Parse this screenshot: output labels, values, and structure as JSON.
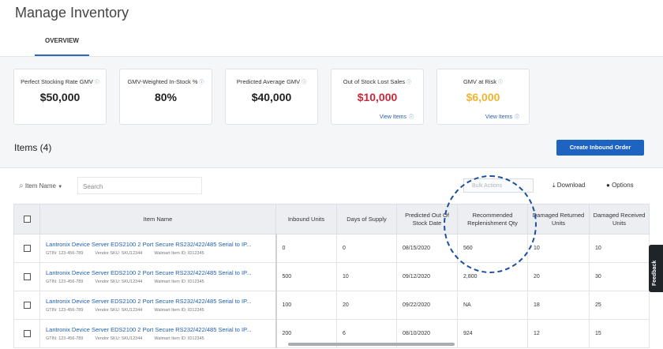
{
  "header": {
    "title": "Manage Inventory",
    "tab": "OVERVIEW"
  },
  "metrics": [
    {
      "label": "Perfect Stocking Rate GMV",
      "value": "$50,000",
      "color": "#222222"
    },
    {
      "label": "GMV-Weighted In-Stock %",
      "value": "80%",
      "color": "#222222"
    },
    {
      "label": "Predicted Average GMV",
      "value": "$40,000",
      "color": "#222222"
    },
    {
      "label": "Out of Stock Lost Sales",
      "value": "$10,000",
      "color": "#c8283b",
      "link": "View Items"
    },
    {
      "label": "GMV at Risk",
      "value": "$6,000",
      "color": "#f2b430",
      "link": "View Items"
    }
  ],
  "items": {
    "title": "Items (4)",
    "create_button": "Create Inbound Order"
  },
  "toolbar": {
    "filter_label": "Item Name",
    "search_placeholder": "Search",
    "bulk_actions": "Bulk Actions",
    "download": "Download",
    "options": "Options"
  },
  "table": {
    "headers": [
      "Item Name",
      "Inbound Units",
      "Days of Supply",
      "Predicted Out Of Stock Date",
      "Recommended Replenishment Qty",
      "Damaged Returned Units",
      "Damaged Received Units"
    ],
    "rows": [
      {
        "name": "Lantronix Device Server EDS2100 2 Port Secure RS232/422/485 Serial to IP...",
        "gtin": "GTIN: 123-456-789",
        "vendor_sku": "Vendor SKU: SKU12344",
        "walmart_id": "Walmart Item ID: ID12345",
        "inbound": "0",
        "days": "0",
        "oos_date": "08/15/2020",
        "replenish": "560",
        "dmg_returned": "10",
        "dmg_received": "10"
      },
      {
        "name": "Lantronix Device Server EDS2100 2 Port Secure RS232/422/485 Serial to IP...",
        "gtin": "GTIN: 123-456-789",
        "vendor_sku": "Vendor SKU: SKU12344",
        "walmart_id": "Walmart Item ID: ID12345",
        "inbound": "500",
        "days": "10",
        "oos_date": "09/12/2020",
        "replenish": "2,800",
        "dmg_returned": "20",
        "dmg_received": "30"
      },
      {
        "name": "Lantronix Device Server EDS2100 2 Port Secure RS232/422/485 Serial to IP...",
        "gtin": "GTIN: 123-456-789",
        "vendor_sku": "Vendor SKU: SKU12344",
        "walmart_id": "Walmart Item ID: ID12345",
        "inbound": "100",
        "days": "20",
        "oos_date": "09/22/2020",
        "replenish": "NA",
        "dmg_returned": "18",
        "dmg_received": "25"
      },
      {
        "name": "Lantronix Device Server EDS2100 2 Port Secure RS232/422/485 Serial to IP...",
        "gtin": "GTIN: 123-456-789",
        "vendor_sku": "Vendor SKU: SKU12344",
        "walmart_id": "Walmart Item ID: ID12345",
        "inbound": "200",
        "days": "6",
        "oos_date": "08/10/2020",
        "replenish": "924",
        "dmg_returned": "12",
        "dmg_received": "15"
      }
    ]
  },
  "feedback": "Feedback",
  "icons": {
    "search": "search-icon",
    "download": "download-icon",
    "options": "info-icon"
  }
}
